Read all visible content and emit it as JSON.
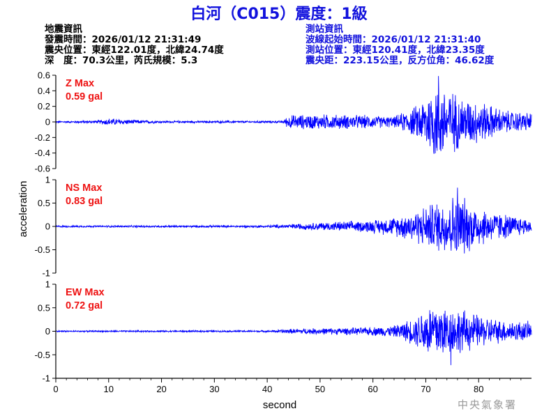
{
  "title": "白河（C015）震度：1級",
  "quake_info": {
    "heading": "地震資訊",
    "time": "發震時間：2026/01/12 21:31:49",
    "location": "震央位置：東經122.01度，北緯24.74度",
    "depth_magnitude": "深　度：70.3公里，芮氏規模：5.3"
  },
  "station_info": {
    "heading": "測站資訊",
    "start_time": "波線起始時間：2026/01/12 21:31:40",
    "location": "測站位置：東經120.41度，北緯23.35度",
    "distance": "震央距：223.15公里，反方位角：46.62度"
  },
  "watermark": "中央氣象署",
  "colors": {
    "title": "#1111dd",
    "trace": "#0000ff",
    "max_label": "#ee1111",
    "axis": "#000000"
  },
  "chart_data": {
    "type": "line",
    "xlabel": "second",
    "ylabel": "acceleration",
    "xlim": [
      0,
      90
    ],
    "x_ticks": [
      "0",
      "10",
      "20",
      "30",
      "40",
      "50",
      "60",
      "70",
      "80"
    ],
    "grid": false,
    "panels": [
      {
        "name": "Z",
        "max_title": "Z Max",
        "max_value": "0.59 gal",
        "ylim": [
          -0.6,
          0.6
        ],
        "y_ticks": [
          "0.6",
          "0.4",
          "0.2",
          "0",
          "-0.2",
          "-0.4",
          "-0.6"
        ],
        "peak": 0.59,
        "envelope": [
          [
            0,
            0.01
          ],
          [
            8,
            0.02
          ],
          [
            10,
            0.05
          ],
          [
            14,
            0.03
          ],
          [
            20,
            0.015
          ],
          [
            43,
            0.015
          ],
          [
            44,
            0.09
          ],
          [
            50,
            0.1
          ],
          [
            58,
            0.09
          ],
          [
            64,
            0.07
          ],
          [
            68,
            0.2
          ],
          [
            70,
            0.35
          ],
          [
            72,
            0.55
          ],
          [
            74,
            0.45
          ],
          [
            77,
            0.32
          ],
          [
            80,
            0.28
          ],
          [
            85,
            0.15
          ],
          [
            90,
            0.12
          ]
        ]
      },
      {
        "name": "NS",
        "max_title": "NS Max",
        "max_value": "0.83 gal",
        "ylim": [
          -1,
          1
        ],
        "y_ticks": [
          "1",
          "0.5",
          "0",
          "-0.5",
          "-1"
        ],
        "peak": 0.83,
        "envelope": [
          [
            0,
            0.02
          ],
          [
            40,
            0.025
          ],
          [
            44,
            0.05
          ],
          [
            50,
            0.09
          ],
          [
            58,
            0.12
          ],
          [
            64,
            0.2
          ],
          [
            68,
            0.35
          ],
          [
            70,
            0.45
          ],
          [
            72,
            0.55
          ],
          [
            74,
            0.6
          ],
          [
            76,
            0.75
          ],
          [
            78,
            0.55
          ],
          [
            82,
            0.35
          ],
          [
            86,
            0.25
          ],
          [
            90,
            0.15
          ]
        ]
      },
      {
        "name": "EW",
        "max_title": "EW Max",
        "max_value": "0.72 gal",
        "ylim": [
          -1,
          1
        ],
        "y_ticks": [
          "1",
          "0.5",
          "0",
          "-0.5",
          "-1"
        ],
        "peak": 0.72,
        "envelope": [
          [
            0,
            0.015
          ],
          [
            40,
            0.02
          ],
          [
            44,
            0.05
          ],
          [
            50,
            0.07
          ],
          [
            58,
            0.08
          ],
          [
            64,
            0.12
          ],
          [
            68,
            0.3
          ],
          [
            70,
            0.55
          ],
          [
            72,
            0.65
          ],
          [
            74,
            0.55
          ],
          [
            76,
            0.5
          ],
          [
            80,
            0.35
          ],
          [
            84,
            0.25
          ],
          [
            90,
            0.2
          ]
        ]
      }
    ]
  }
}
